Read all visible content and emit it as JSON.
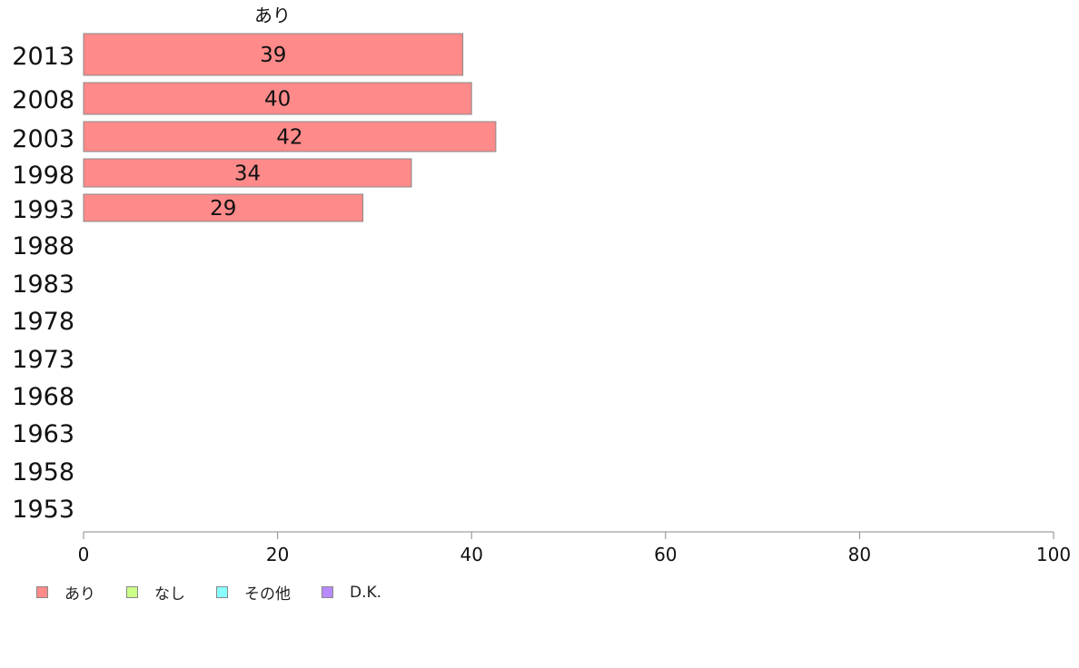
{
  "chart_data": {
    "type": "bar",
    "orientation": "horizontal",
    "stacked": true,
    "categories": [
      "2013",
      "2008",
      "2003",
      "1998",
      "1993",
      "1988",
      "1983",
      "1978",
      "1973",
      "1968",
      "1963",
      "1958",
      "1953"
    ],
    "series": [
      {
        "name": "あり",
        "color": "#ff8a8a",
        "values": [
          39,
          40,
          42,
          34,
          29,
          null,
          null,
          null,
          null,
          null,
          null,
          null,
          null
        ],
        "bar_values": [
          39.1,
          40.0,
          42.5,
          33.8,
          28.8,
          null,
          null,
          null,
          null,
          null,
          null,
          null,
          null
        ]
      },
      {
        "name": "なし",
        "color": "#ccff8a",
        "values": [
          null,
          null,
          null,
          null,
          null,
          null,
          null,
          null,
          null,
          null,
          null,
          null,
          null
        ]
      },
      {
        "name": "その他",
        "color": "#8affff",
        "values": [
          null,
          null,
          null,
          null,
          null,
          null,
          null,
          null,
          null,
          null,
          null,
          null,
          null
        ]
      },
      {
        "name": "D.K.",
        "color": "#b88aff",
        "values": [
          null,
          null,
          null,
          null,
          null,
          null,
          null,
          null,
          null,
          null,
          null,
          null,
          null
        ]
      }
    ],
    "column_header": "あり",
    "xlim": [
      0,
      100
    ],
    "xticks": [
      "0",
      "20",
      "40",
      "60",
      "80",
      "100"
    ],
    "legend_position": "bottom-left",
    "grid": false
  }
}
